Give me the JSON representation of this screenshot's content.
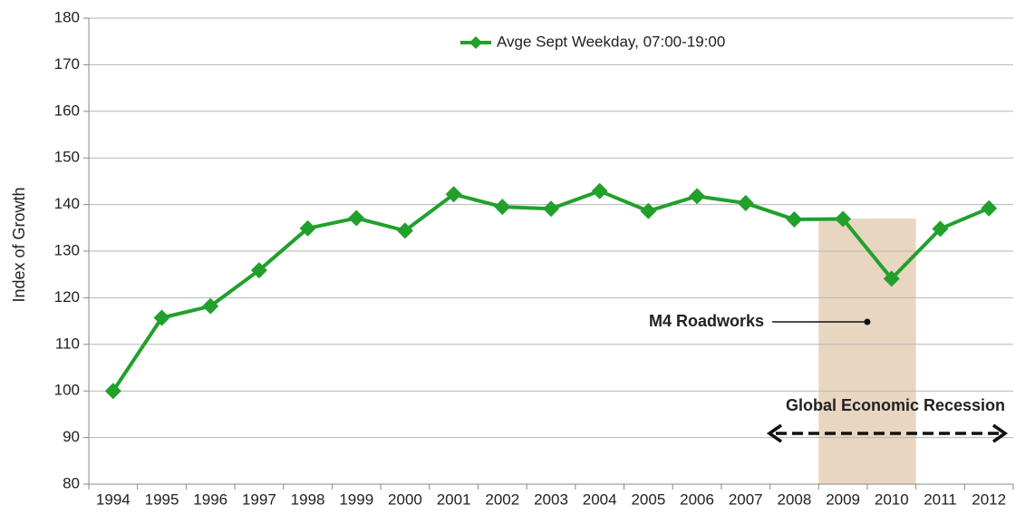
{
  "chart_data": {
    "type": "line",
    "y_label": "Index of Growth",
    "categories": [
      "1994",
      "1995",
      "1996",
      "1997",
      "1998",
      "1999",
      "2000",
      "2001",
      "2002",
      "2003",
      "2004",
      "2005",
      "2006",
      "2007",
      "2008",
      "2009",
      "2010",
      "2011",
      "2012"
    ],
    "series": [
      {
        "name": "Avge Sept Weekday, 07:00-19:00",
        "color": "#21a02c",
        "values": [
          100,
          115.7,
          118.2,
          125.9,
          134.9,
          137.1,
          134.4,
          142.2,
          139.5,
          139.1,
          142.9,
          138.6,
          141.8,
          140.3,
          136.8,
          136.9,
          124.1,
          134.8,
          139.2
        ]
      }
    ],
    "ylim": [
      80,
      180
    ],
    "yticks": [
      80,
      90,
      100,
      110,
      120,
      130,
      140,
      150,
      160,
      170,
      180
    ],
    "grid": true,
    "legend": "top",
    "shaded_span": {
      "start": "2009",
      "end": "2010",
      "top": 137,
      "color": "#e9d6c1"
    },
    "annotations": {
      "roadworks": "M4 Roadworks",
      "recession": "Global Economic Recession"
    }
  }
}
